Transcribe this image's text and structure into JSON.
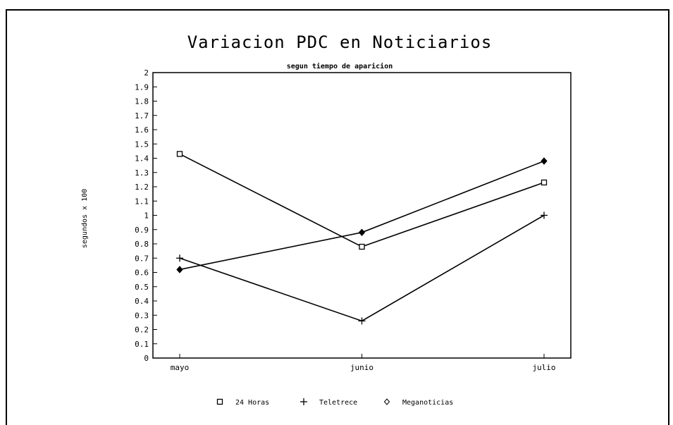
{
  "chart_data": {
    "type": "line",
    "title": "Variacion PDC en Noticiarios",
    "subtitle": "segun tiempo de aparicion",
    "xlabel": "",
    "ylabel": "segundos x 100",
    "categories": [
      "mayo",
      "junio",
      "julio"
    ],
    "ylim": [
      0,
      2
    ],
    "yticks": [
      "0",
      "0.1",
      "0.2",
      "0.3",
      "0.4",
      "0.5",
      "0.6",
      "0.7",
      "0.8",
      "0.9",
      "1",
      "1.1",
      "1.2",
      "1.3",
      "1.4",
      "1.5",
      "1.6",
      "1.7",
      "1.8",
      "1.9",
      "2"
    ],
    "grid": false,
    "legend_position": "bottom",
    "series": [
      {
        "name": "24 Horas",
        "marker": "square",
        "values": [
          1.43,
          0.78,
          1.23
        ]
      },
      {
        "name": "Teletrece",
        "marker": "plus",
        "values": [
          0.7,
          0.26,
          1.0
        ]
      },
      {
        "name": "Meganoticias",
        "marker": "diamond",
        "values": [
          0.62,
          0.88,
          1.38
        ]
      }
    ]
  }
}
